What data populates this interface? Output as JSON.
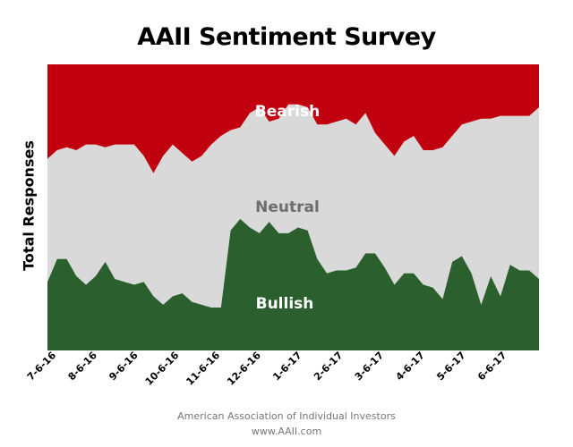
{
  "chart_data": {
    "type": "area",
    "stacked": true,
    "normalized": true,
    "title": "AAII Sentiment Survey",
    "xlabel": "",
    "ylabel": "Total Responses",
    "x_tick_labels": [
      "7-6-16",
      "8-6-16",
      "9-6-16",
      "10-6-16",
      "11-6-16",
      "12-6-16",
      "1-6-17",
      "2-6-17",
      "3-6-17",
      "4-6-17",
      "5-6-17",
      "6-6-17"
    ],
    "band_labels": {
      "bearish": "Bearish",
      "neutral": "Neutral",
      "bullish": "Bullish"
    },
    "series": [
      {
        "name": "Bullish",
        "color": "#2c5f2e",
        "values": [
          0.24,
          0.32,
          0.32,
          0.26,
          0.23,
          0.26,
          0.31,
          0.25,
          0.24,
          0.23,
          0.24,
          0.19,
          0.16,
          0.19,
          0.2,
          0.17,
          0.16,
          0.15,
          0.15,
          0.42,
          0.46,
          0.43,
          0.41,
          0.45,
          0.41,
          0.41,
          0.43,
          0.42,
          0.32,
          0.27,
          0.28,
          0.28,
          0.29,
          0.34,
          0.34,
          0.29,
          0.23,
          0.27,
          0.27,
          0.23,
          0.22,
          0.18,
          0.31,
          0.33,
          0.27,
          0.16,
          0.26,
          0.19,
          0.3,
          0.28,
          0.28,
          0.25
        ]
      },
      {
        "name": "Neutral",
        "color": "#d9d9d9",
        "values": [
          0.43,
          0.38,
          0.39,
          0.44,
          0.49,
          0.46,
          0.4,
          0.47,
          0.48,
          0.49,
          0.44,
          0.43,
          0.52,
          0.53,
          0.49,
          0.49,
          0.52,
          0.57,
          0.6,
          0.35,
          0.32,
          0.4,
          0.44,
          0.35,
          0.4,
          0.45,
          0.43,
          0.43,
          0.47,
          0.52,
          0.52,
          0.53,
          0.5,
          0.49,
          0.42,
          0.43,
          0.45,
          0.46,
          0.48,
          0.47,
          0.48,
          0.53,
          0.44,
          0.46,
          0.53,
          0.65,
          0.55,
          0.63,
          0.52,
          0.54,
          0.54,
          0.6
        ]
      },
      {
        "name": "Bearish",
        "color": "#c0000f",
        "values": [
          0.33,
          0.3,
          0.29,
          0.3,
          0.28,
          0.28,
          0.29,
          0.28,
          0.28,
          0.28,
          0.32,
          0.38,
          0.32,
          0.28,
          0.31,
          0.34,
          0.32,
          0.28,
          0.25,
          0.23,
          0.22,
          0.17,
          0.15,
          0.2,
          0.19,
          0.14,
          0.14,
          0.15,
          0.21,
          0.21,
          0.2,
          0.19,
          0.21,
          0.17,
          0.24,
          0.28,
          0.32,
          0.27,
          0.25,
          0.3,
          0.3,
          0.29,
          0.25,
          0.21,
          0.2,
          0.19,
          0.19,
          0.18,
          0.18,
          0.18,
          0.18,
          0.15
        ]
      }
    ],
    "ylim": [
      0,
      1
    ],
    "grid": false,
    "legend": "none"
  },
  "footer": {
    "line1": "American Association of Individual Investors",
    "line2": "www.AAII.com"
  }
}
